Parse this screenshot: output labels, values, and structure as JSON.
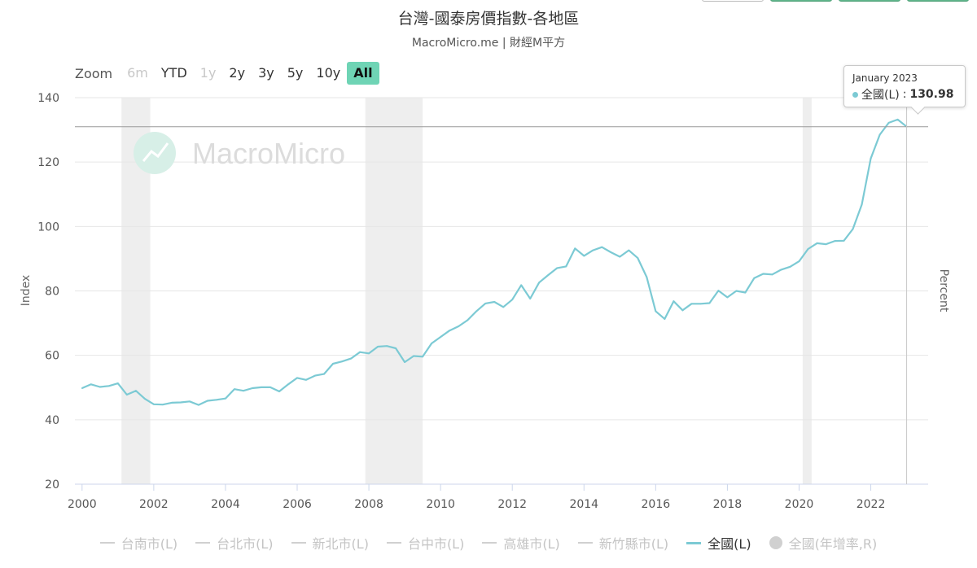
{
  "title": "台灣-國泰房價指數-各地區",
  "subtitle": "MacroMicro.me | 財經M平方",
  "watermark": "MacroMicro",
  "zoom": {
    "label": "Zoom",
    "buttons": [
      {
        "label": "6m",
        "state": "disabled"
      },
      {
        "label": "YTD",
        "state": "normal"
      },
      {
        "label": "1y",
        "state": "disabled"
      },
      {
        "label": "2y",
        "state": "normal"
      },
      {
        "label": "3y",
        "state": "normal"
      },
      {
        "label": "5y",
        "state": "normal"
      },
      {
        "label": "10y",
        "state": "normal"
      },
      {
        "label": "All",
        "state": "active"
      }
    ]
  },
  "tooltip": {
    "date": "January 2023",
    "series": "全國(L)",
    "value": "130.98"
  },
  "legend": [
    {
      "label": "台南市(L)",
      "on": false,
      "marker": "line"
    },
    {
      "label": "台北市(L)",
      "on": false,
      "marker": "line"
    },
    {
      "label": "新北市(L)",
      "on": false,
      "marker": "line"
    },
    {
      "label": "台中市(L)",
      "on": false,
      "marker": "line"
    },
    {
      "label": "高雄市(L)",
      "on": false,
      "marker": "line"
    },
    {
      "label": "新竹縣市(L)",
      "on": false,
      "marker": "line"
    },
    {
      "label": "全國(L)",
      "on": true,
      "marker": "line"
    },
    {
      "label": "全國(年增率,R)",
      "on": false,
      "marker": "dot"
    }
  ],
  "colors": {
    "series": "#7ccad4",
    "grid": "#e6e6e6",
    "shade": "#eeeeee",
    "zoom_active": "#6fd4b5"
  },
  "chart_data": {
    "type": "line",
    "title": "台灣-國泰房價指數-各地區",
    "ylabel": "Index",
    "y2label": "Percent",
    "xlim": [
      1999.8,
      2023.6
    ],
    "ylim": [
      20,
      140
    ],
    "yticks": [
      20,
      40,
      60,
      80,
      100,
      120,
      140
    ],
    "xticks": [
      2000,
      2002,
      2004,
      2006,
      2008,
      2010,
      2012,
      2014,
      2016,
      2018,
      2020,
      2022
    ],
    "grid": true,
    "recession_shading": [
      [
        2001.1,
        2001.9
      ],
      [
        2007.9,
        2009.5
      ],
      [
        2020.1,
        2020.35
      ]
    ],
    "crosshair": {
      "x": 2023.0,
      "y": 130.98
    },
    "series": [
      {
        "name": "全國(L)",
        "points": [
          [
            2000.0,
            49.8
          ],
          [
            2000.25,
            51.0
          ],
          [
            2000.5,
            50.2
          ],
          [
            2000.75,
            50.5
          ],
          [
            2001.0,
            51.3
          ],
          [
            2001.25,
            47.8
          ],
          [
            2001.5,
            49.0
          ],
          [
            2001.75,
            46.5
          ],
          [
            2002.0,
            44.8
          ],
          [
            2002.25,
            44.7
          ],
          [
            2002.5,
            45.3
          ],
          [
            2002.75,
            45.4
          ],
          [
            2003.0,
            45.7
          ],
          [
            2003.25,
            44.6
          ],
          [
            2003.5,
            45.9
          ],
          [
            2003.75,
            46.2
          ],
          [
            2004.0,
            46.6
          ],
          [
            2004.25,
            49.5
          ],
          [
            2004.5,
            49.0
          ],
          [
            2004.75,
            49.8
          ],
          [
            2005.0,
            50.1
          ],
          [
            2005.25,
            50.1
          ],
          [
            2005.5,
            48.8
          ],
          [
            2005.75,
            51.0
          ],
          [
            2006.0,
            53.0
          ],
          [
            2006.25,
            52.4
          ],
          [
            2006.5,
            53.7
          ],
          [
            2006.75,
            54.2
          ],
          [
            2007.0,
            57.4
          ],
          [
            2007.25,
            58.1
          ],
          [
            2007.5,
            59.0
          ],
          [
            2007.75,
            61.0
          ],
          [
            2008.0,
            60.6
          ],
          [
            2008.25,
            62.7
          ],
          [
            2008.5,
            62.9
          ],
          [
            2008.75,
            62.2
          ],
          [
            2009.0,
            57.9
          ],
          [
            2009.25,
            59.8
          ],
          [
            2009.5,
            59.6
          ],
          [
            2009.75,
            63.7
          ],
          [
            2010.0,
            65.7
          ],
          [
            2010.25,
            67.7
          ],
          [
            2010.5,
            69.0
          ],
          [
            2010.75,
            70.9
          ],
          [
            2011.0,
            73.7
          ],
          [
            2011.25,
            76.1
          ],
          [
            2011.5,
            76.6
          ],
          [
            2011.75,
            75.0
          ],
          [
            2012.0,
            77.3
          ],
          [
            2012.25,
            81.8
          ],
          [
            2012.5,
            77.6
          ],
          [
            2012.75,
            82.6
          ],
          [
            2013.0,
            84.9
          ],
          [
            2013.25,
            87.1
          ],
          [
            2013.5,
            87.6
          ],
          [
            2013.75,
            93.2
          ],
          [
            2014.0,
            90.9
          ],
          [
            2014.25,
            92.6
          ],
          [
            2014.5,
            93.6
          ],
          [
            2014.75,
            92.0
          ],
          [
            2015.0,
            90.6
          ],
          [
            2015.25,
            92.6
          ],
          [
            2015.5,
            90.2
          ],
          [
            2015.75,
            84.3
          ],
          [
            2016.0,
            73.7
          ],
          [
            2016.25,
            71.3
          ],
          [
            2016.5,
            76.8
          ],
          [
            2016.75,
            74.0
          ],
          [
            2017.0,
            76.0
          ],
          [
            2017.25,
            76.0
          ],
          [
            2017.5,
            76.2
          ],
          [
            2017.75,
            80.1
          ],
          [
            2018.0,
            78.0
          ],
          [
            2018.25,
            80.0
          ],
          [
            2018.5,
            79.5
          ],
          [
            2018.75,
            84.0
          ],
          [
            2019.0,
            85.3
          ],
          [
            2019.25,
            85.1
          ],
          [
            2019.5,
            86.6
          ],
          [
            2019.75,
            87.5
          ],
          [
            2020.0,
            89.2
          ],
          [
            2020.25,
            93.0
          ],
          [
            2020.5,
            94.8
          ],
          [
            2020.75,
            94.5
          ],
          [
            2021.0,
            95.5
          ],
          [
            2021.25,
            95.6
          ],
          [
            2021.5,
            99.2
          ],
          [
            2021.75,
            106.8
          ],
          [
            2022.0,
            121.1
          ],
          [
            2022.25,
            128.5
          ],
          [
            2022.5,
            132.2
          ],
          [
            2022.75,
            133.2
          ],
          [
            2023.0,
            130.98
          ]
        ]
      }
    ]
  }
}
